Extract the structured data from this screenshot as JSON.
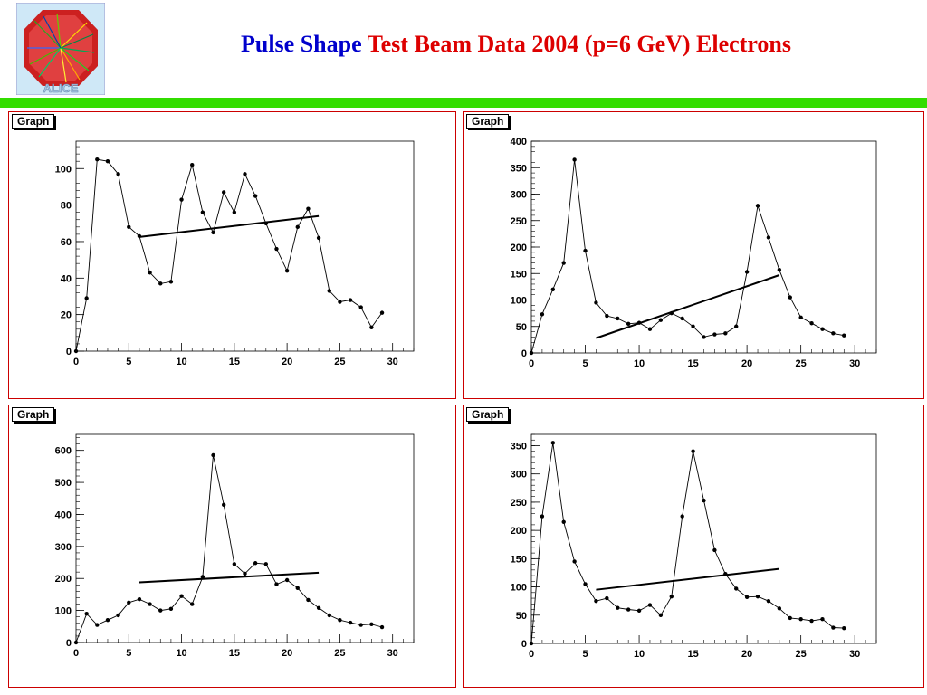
{
  "header": {
    "title_part1": "Pulse Shape",
    "title_part2": "Test Beam Data 2004 (p=6 GeV)  Electrons",
    "logo_text": "ALICE",
    "title_color1": "#0000cc",
    "title_color2": "#dd0000",
    "bar_color": "#33dd00"
  },
  "chart_data": [
    {
      "type": "line",
      "title": "Graph",
      "xlim": [
        0,
        32
      ],
      "ylim": [
        0,
        115
      ],
      "xticks": [
        0,
        5,
        10,
        15,
        20,
        25,
        30
      ],
      "yticks": [
        0,
        20,
        40,
        60,
        80,
        100
      ],
      "series": [
        {
          "x": [
            0,
            1,
            2,
            3,
            4,
            5,
            6,
            7,
            8,
            9,
            10,
            11,
            12,
            13,
            14,
            15,
            16,
            17,
            18,
            19,
            20,
            21,
            22,
            23,
            24,
            25,
            26,
            27,
            28,
            29
          ],
          "values": [
            0,
            29,
            105,
            104,
            97,
            68,
            63,
            43,
            37,
            38,
            83,
            102,
            76,
            65,
            87,
            76,
            97,
            85,
            70,
            56,
            44,
            68,
            78,
            62,
            33,
            27,
            28,
            24,
            13,
            21
          ]
        }
      ],
      "fit_line": {
        "x": [
          6,
          23
        ],
        "y": [
          62.5,
          74
        ]
      }
    },
    {
      "type": "line",
      "title": "Graph",
      "xlim": [
        0,
        32
      ],
      "ylim": [
        0,
        400
      ],
      "xticks": [
        0,
        5,
        10,
        15,
        20,
        25,
        30
      ],
      "yticks": [
        0,
        50,
        100,
        150,
        200,
        250,
        300,
        350,
        400
      ],
      "series": [
        {
          "x": [
            0,
            1,
            2,
            3,
            4,
            5,
            6,
            7,
            8,
            9,
            10,
            11,
            12,
            13,
            14,
            15,
            16,
            17,
            18,
            19,
            20,
            21,
            22,
            23,
            24,
            25,
            26,
            27,
            28,
            29
          ],
          "values": [
            0,
            73,
            120,
            170,
            365,
            193,
            95,
            70,
            65,
            55,
            57,
            45,
            62,
            75,
            65,
            50,
            30,
            35,
            37,
            50,
            153,
            278,
            218,
            157,
            105,
            67,
            56,
            45,
            37,
            33
          ]
        }
      ],
      "fit_line": {
        "x": [
          6,
          23
        ],
        "y": [
          28,
          147
        ]
      }
    },
    {
      "type": "line",
      "title": "Graph",
      "xlim": [
        0,
        32
      ],
      "ylim": [
        0,
        650
      ],
      "xticks": [
        0,
        5,
        10,
        15,
        20,
        25,
        30
      ],
      "yticks": [
        0,
        100,
        200,
        300,
        400,
        500,
        600
      ],
      "series": [
        {
          "x": [
            0,
            1,
            2,
            3,
            4,
            5,
            6,
            7,
            8,
            9,
            10,
            11,
            12,
            13,
            14,
            15,
            16,
            17,
            18,
            19,
            20,
            21,
            22,
            23,
            24,
            25,
            26,
            27,
            28,
            29
          ],
          "values": [
            0,
            90,
            55,
            70,
            85,
            125,
            135,
            120,
            100,
            105,
            145,
            120,
            205,
            585,
            430,
            245,
            215,
            248,
            245,
            182,
            195,
            170,
            133,
            108,
            85,
            70,
            62,
            55,
            57,
            48
          ]
        }
      ],
      "fit_line": {
        "x": [
          6,
          23
        ],
        "y": [
          188,
          218
        ]
      }
    },
    {
      "type": "line",
      "title": "Graph",
      "xlim": [
        0,
        32
      ],
      "ylim": [
        0,
        370
      ],
      "xticks": [
        0,
        5,
        10,
        15,
        20,
        25,
        30
      ],
      "yticks": [
        0,
        50,
        100,
        150,
        200,
        250,
        300,
        350
      ],
      "series": [
        {
          "x": [
            0,
            1,
            2,
            3,
            4,
            5,
            6,
            7,
            8,
            9,
            10,
            11,
            12,
            13,
            14,
            15,
            16,
            17,
            18,
            19,
            20,
            21,
            22,
            23,
            24,
            25,
            26,
            27,
            28,
            29
          ],
          "values": [
            0,
            225,
            355,
            215,
            145,
            105,
            75,
            80,
            63,
            60,
            58,
            68,
            50,
            83,
            225,
            340,
            253,
            165,
            123,
            97,
            82,
            83,
            75,
            62,
            45,
            43,
            40,
            43,
            28,
            27
          ]
        }
      ],
      "fit_line": {
        "x": [
          6,
          23
        ],
        "y": [
          95,
          132
        ]
      }
    }
  ]
}
